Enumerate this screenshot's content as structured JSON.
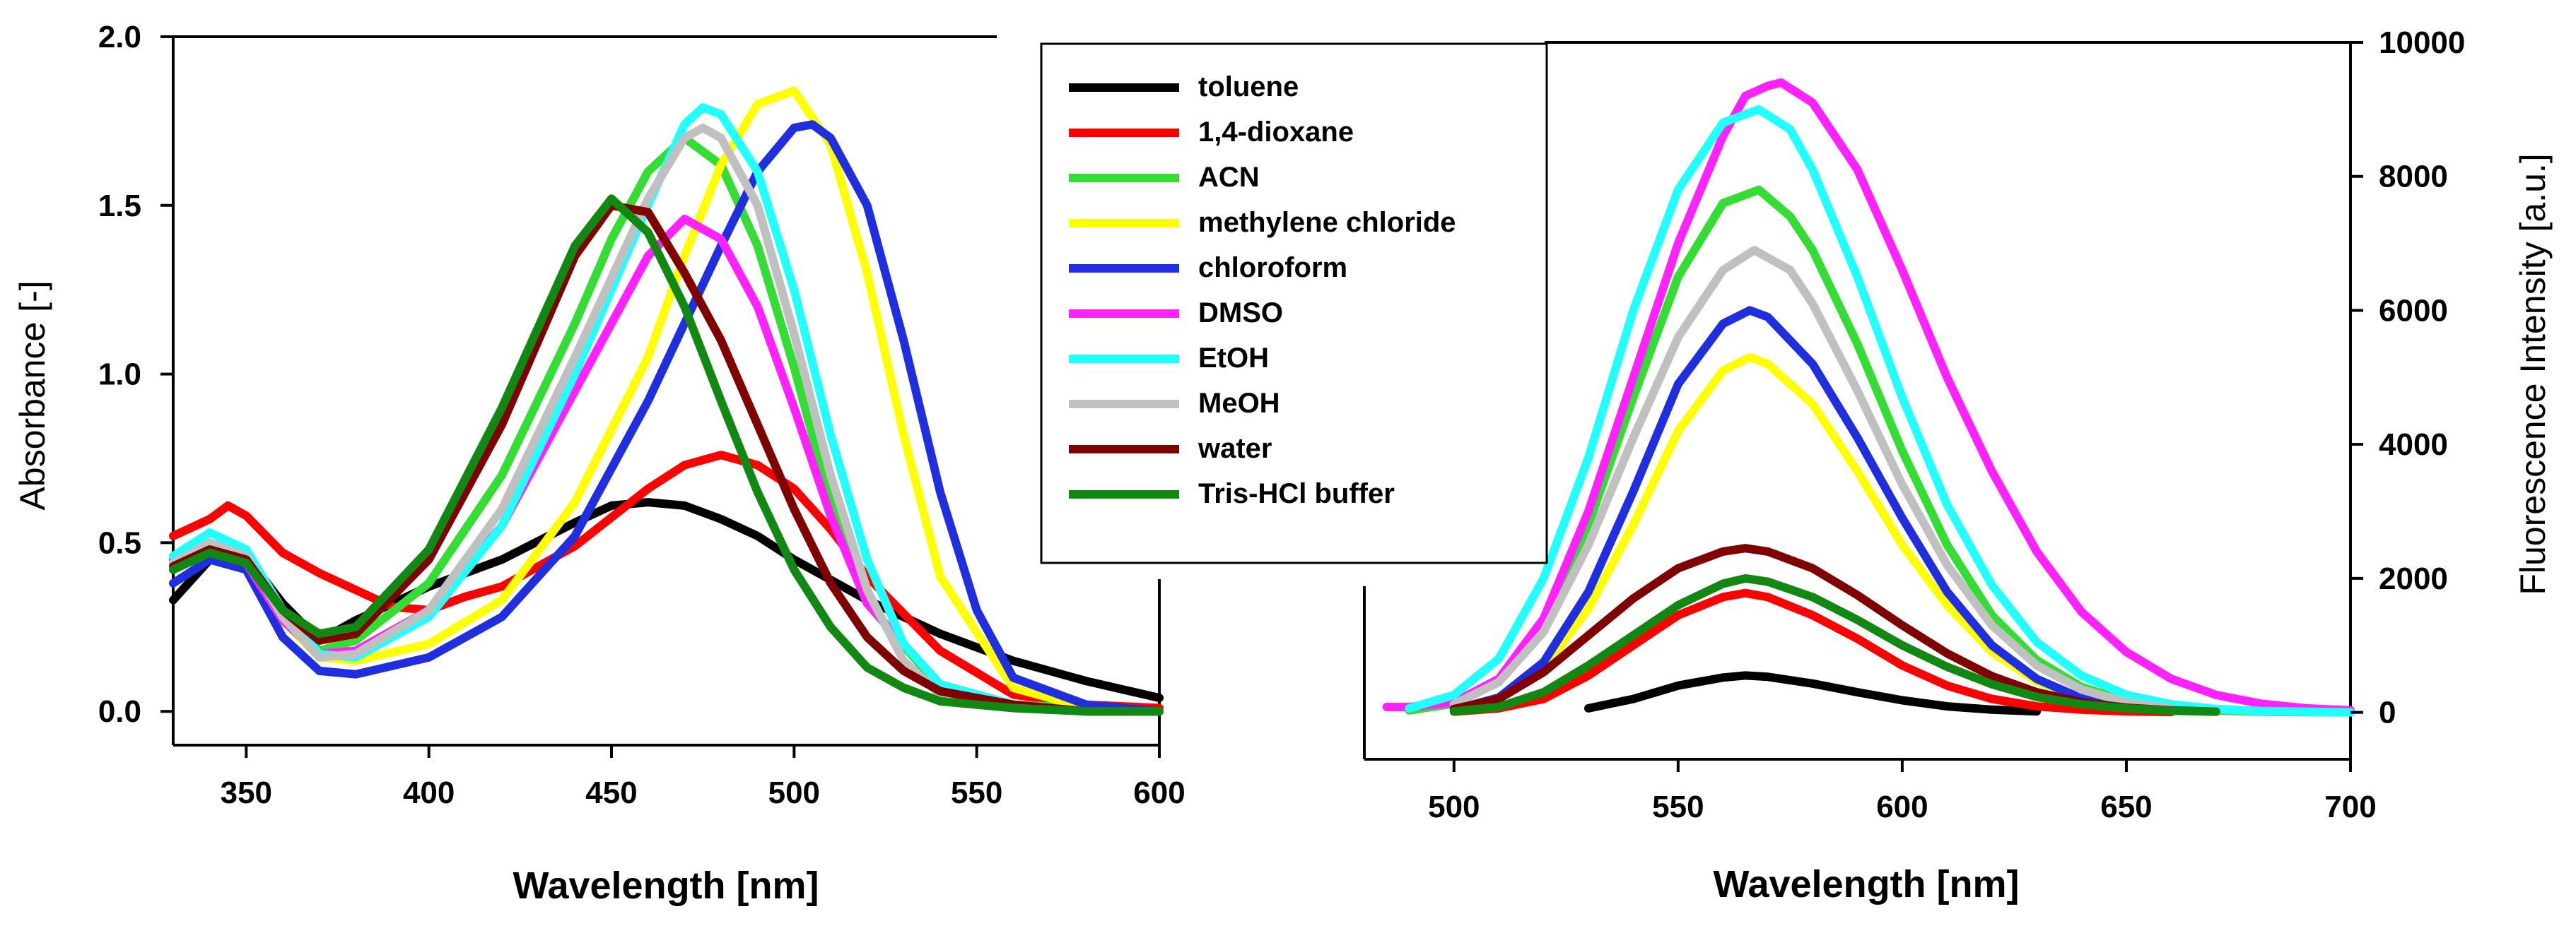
{
  "legend": {
    "entries": [
      {
        "label": "toluene",
        "color": "#000000"
      },
      {
        "label": "1,4-dioxane",
        "color": "#ff0000"
      },
      {
        "label": "ACN",
        "color": "#33dd33"
      },
      {
        "label": "methylene chloride",
        "color": "#ffff00"
      },
      {
        "label": "chloroform",
        "color": "#1f2fe0"
      },
      {
        "label": "DMSO",
        "color": "#ff22ff"
      },
      {
        "label": "EtOH",
        "color": "#22ffff"
      },
      {
        "label": "MeOH",
        "color": "#c0c0c0"
      },
      {
        "label": "water",
        "color": "#800000"
      },
      {
        "label": "Tris-HCl buffer",
        "color": "#118811"
      }
    ]
  },
  "chart_data": [
    {
      "type": "line",
      "title": "",
      "xlabel": "Wavelength [nm]",
      "ylabel": "Absorbance [-]",
      "xlim": [
        330,
        600
      ],
      "ylim": [
        -0.1,
        2.0
      ],
      "xticks": [
        "350",
        "400",
        "450",
        "500",
        "550",
        "600"
      ],
      "yticks": [
        "0.0",
        "0.5",
        "1.0",
        "1.5",
        "2.0"
      ],
      "grid": false,
      "legend_position": "top-right",
      "series": [
        {
          "name": "toluene",
          "x": [
            330,
            340,
            350,
            360,
            370,
            380,
            400,
            420,
            440,
            450,
            460,
            470,
            480,
            490,
            500,
            520,
            540,
            560,
            580,
            600
          ],
          "y": [
            0.33,
            0.45,
            0.46,
            0.32,
            0.21,
            0.27,
            0.37,
            0.45,
            0.56,
            0.61,
            0.62,
            0.61,
            0.57,
            0.52,
            0.45,
            0.33,
            0.23,
            0.15,
            0.09,
            0.04
          ]
        },
        {
          "name": "1,4-dioxane",
          "x": [
            330,
            340,
            345,
            350,
            360,
            370,
            380,
            390,
            400,
            410,
            420,
            440,
            460,
            470,
            480,
            490,
            500,
            510,
            520,
            540,
            560,
            580,
            600
          ],
          "y": [
            0.52,
            0.57,
            0.61,
            0.58,
            0.47,
            0.41,
            0.36,
            0.31,
            0.3,
            0.34,
            0.37,
            0.49,
            0.66,
            0.73,
            0.76,
            0.73,
            0.66,
            0.54,
            0.4,
            0.18,
            0.05,
            0.02,
            0.01
          ]
        },
        {
          "name": "ACN",
          "x": [
            330,
            340,
            350,
            360,
            370,
            380,
            400,
            420,
            440,
            450,
            460,
            470,
            480,
            490,
            500,
            510,
            520,
            540,
            560,
            580,
            600
          ],
          "y": [
            0.45,
            0.5,
            0.46,
            0.28,
            0.18,
            0.21,
            0.38,
            0.7,
            1.15,
            1.4,
            1.6,
            1.7,
            1.62,
            1.38,
            1.02,
            0.62,
            0.32,
            0.07,
            0.02,
            0.01,
            0.0
          ]
        },
        {
          "name": "methylene chloride",
          "x": [
            330,
            340,
            350,
            360,
            370,
            380,
            400,
            420,
            440,
            460,
            470,
            480,
            490,
            500,
            510,
            520,
            530,
            540,
            560,
            580,
            600
          ],
          "y": [
            0.42,
            0.48,
            0.44,
            0.27,
            0.16,
            0.15,
            0.2,
            0.33,
            0.62,
            1.05,
            1.35,
            1.62,
            1.8,
            1.84,
            1.68,
            1.3,
            0.82,
            0.4,
            0.07,
            0.01,
            0.0
          ]
        },
        {
          "name": "chloroform",
          "x": [
            330,
            340,
            350,
            360,
            370,
            380,
            400,
            420,
            440,
            460,
            480,
            490,
            500,
            505,
            510,
            520,
            530,
            540,
            550,
            560,
            580,
            600
          ],
          "y": [
            0.38,
            0.45,
            0.42,
            0.22,
            0.12,
            0.11,
            0.16,
            0.28,
            0.52,
            0.92,
            1.38,
            1.6,
            1.73,
            1.74,
            1.7,
            1.5,
            1.1,
            0.65,
            0.3,
            0.1,
            0.02,
            0.0
          ]
        },
        {
          "name": "DMSO",
          "x": [
            330,
            340,
            350,
            360,
            370,
            380,
            400,
            420,
            440,
            450,
            460,
            470,
            480,
            490,
            500,
            510,
            520,
            540,
            560,
            580,
            600
          ],
          "y": [
            0.45,
            0.48,
            0.44,
            0.27,
            0.17,
            0.18,
            0.3,
            0.55,
            0.95,
            1.15,
            1.35,
            1.46,
            1.4,
            1.2,
            0.9,
            0.58,
            0.32,
            0.08,
            0.02,
            0.0,
            0.0
          ]
        },
        {
          "name": "EtOH",
          "x": [
            330,
            340,
            350,
            360,
            370,
            380,
            400,
            420,
            440,
            460,
            470,
            475,
            480,
            490,
            500,
            510,
            520,
            530,
            540,
            560,
            580,
            600
          ],
          "y": [
            0.46,
            0.53,
            0.48,
            0.3,
            0.17,
            0.16,
            0.28,
            0.55,
            1.0,
            1.5,
            1.74,
            1.79,
            1.77,
            1.6,
            1.25,
            0.82,
            0.45,
            0.2,
            0.08,
            0.02,
            0.0,
            0.0
          ]
        },
        {
          "name": "MeOH",
          "x": [
            330,
            340,
            350,
            360,
            370,
            380,
            400,
            420,
            440,
            460,
            470,
            475,
            480,
            490,
            500,
            510,
            520,
            530,
            540,
            560,
            580,
            600
          ],
          "y": [
            0.44,
            0.5,
            0.46,
            0.28,
            0.16,
            0.17,
            0.3,
            0.6,
            1.05,
            1.52,
            1.7,
            1.73,
            1.7,
            1.5,
            1.12,
            0.7,
            0.36,
            0.15,
            0.05,
            0.01,
            0.0,
            0.0
          ]
        },
        {
          "name": "water",
          "x": [
            330,
            340,
            350,
            360,
            370,
            380,
            400,
            420,
            440,
            450,
            460,
            470,
            480,
            490,
            500,
            510,
            520,
            530,
            540,
            560,
            580,
            600
          ],
          "y": [
            0.43,
            0.48,
            0.45,
            0.3,
            0.21,
            0.23,
            0.45,
            0.85,
            1.35,
            1.5,
            1.48,
            1.3,
            1.1,
            0.85,
            0.6,
            0.38,
            0.22,
            0.12,
            0.06,
            0.02,
            0.0,
            0.0
          ]
        },
        {
          "name": "Tris-HCl buffer",
          "x": [
            330,
            340,
            350,
            360,
            370,
            380,
            400,
            420,
            440,
            450,
            460,
            470,
            480,
            490,
            500,
            510,
            520,
            530,
            540,
            560,
            580,
            600
          ],
          "y": [
            0.42,
            0.47,
            0.44,
            0.3,
            0.23,
            0.25,
            0.48,
            0.9,
            1.38,
            1.52,
            1.42,
            1.2,
            0.92,
            0.65,
            0.42,
            0.25,
            0.13,
            0.07,
            0.03,
            0.01,
            0.0,
            0.0
          ]
        }
      ]
    },
    {
      "type": "line",
      "title": "",
      "xlabel": "Wavelength [nm]",
      "ylabel": "Fluorescence Intensity [a.u.]",
      "xlim": [
        480,
        700
      ],
      "ylim": [
        -700,
        10000
      ],
      "xticks": [
        "500",
        "550",
        "600",
        "650",
        "700"
      ],
      "yticks": [
        "0",
        "2000",
        "4000",
        "6000",
        "8000",
        "10000"
      ],
      "grid": false,
      "series": [
        {
          "name": "toluene",
          "x": [
            530,
            540,
            550,
            560,
            565,
            570,
            580,
            590,
            600,
            610,
            620,
            630
          ],
          "y": [
            60,
            200,
            400,
            520,
            550,
            530,
            430,
            300,
            180,
            90,
            40,
            15
          ]
        },
        {
          "name": "1,4-dioxane",
          "x": [
            500,
            510,
            520,
            530,
            540,
            550,
            560,
            565,
            570,
            580,
            590,
            600,
            610,
            620,
            630,
            640,
            650,
            660
          ],
          "y": [
            10,
            60,
            200,
            550,
            1000,
            1450,
            1720,
            1780,
            1720,
            1450,
            1100,
            700,
            400,
            200,
            90,
            40,
            15,
            5
          ]
        },
        {
          "name": "ACN",
          "x": [
            490,
            500,
            510,
            520,
            530,
            540,
            550,
            560,
            568,
            575,
            580,
            590,
            600,
            610,
            620,
            630,
            640,
            650,
            660,
            670,
            680,
            690,
            700
          ],
          "y": [
            30,
            130,
            450,
            1300,
            2800,
            4700,
            6500,
            7600,
            7800,
            7400,
            6900,
            5500,
            3900,
            2500,
            1450,
            780,
            380,
            170,
            70,
            30,
            10,
            3,
            0
          ]
        },
        {
          "name": "methylene chloride",
          "x": [
            500,
            510,
            520,
            530,
            540,
            550,
            560,
            566,
            570,
            580,
            590,
            600,
            610,
            620,
            630,
            640,
            650,
            660,
            670
          ],
          "y": [
            50,
            200,
            650,
            1550,
            2800,
            4200,
            5100,
            5300,
            5200,
            4600,
            3600,
            2500,
            1600,
            900,
            460,
            210,
            90,
            35,
            10
          ]
        },
        {
          "name": "chloroform",
          "x": [
            500,
            510,
            520,
            530,
            540,
            550,
            560,
            566,
            570,
            580,
            590,
            600,
            610,
            620,
            630,
            640,
            650
          ],
          "y": [
            40,
            220,
            750,
            1800,
            3300,
            4900,
            5800,
            6000,
            5900,
            5200,
            4100,
            2900,
            1800,
            1000,
            500,
            210,
            80
          ]
        },
        {
          "name": "DMSO",
          "x": [
            485,
            490,
            500,
            510,
            520,
            530,
            540,
            550,
            560,
            565,
            570,
            573,
            580,
            590,
            600,
            610,
            620,
            630,
            640,
            650,
            660,
            670,
            680,
            690,
            700
          ],
          "y": [
            80,
            80,
            150,
            500,
            1400,
            3000,
            5000,
            7000,
            8600,
            9200,
            9350,
            9400,
            9100,
            8100,
            6600,
            5000,
            3600,
            2400,
            1500,
            900,
            500,
            260,
            130,
            60,
            30
          ]
        },
        {
          "name": "EtOH",
          "x": [
            490,
            500,
            510,
            520,
            530,
            540,
            550,
            560,
            568,
            575,
            580,
            590,
            600,
            610,
            620,
            630,
            640,
            650,
            660,
            670,
            680,
            690,
            700
          ],
          "y": [
            60,
            260,
            800,
            2000,
            3800,
            6000,
            7800,
            8800,
            9000,
            8700,
            8100,
            6500,
            4700,
            3100,
            1900,
            1050,
            550,
            260,
            120,
            50,
            20,
            8,
            0
          ]
        },
        {
          "name": "MeOH",
          "x": [
            500,
            510,
            520,
            530,
            540,
            550,
            560,
            567,
            575,
            580,
            590,
            600,
            610,
            620,
            630,
            640,
            650,
            660
          ],
          "y": [
            120,
            450,
            1200,
            2500,
            4100,
            5600,
            6600,
            6900,
            6600,
            6100,
            4800,
            3400,
            2200,
            1300,
            700,
            340,
            150,
            60
          ]
        },
        {
          "name": "water",
          "x": [
            500,
            510,
            520,
            530,
            540,
            550,
            560,
            565,
            570,
            580,
            590,
            600,
            610,
            620,
            630,
            640,
            650,
            660,
            670
          ],
          "y": [
            50,
            200,
            600,
            1150,
            1700,
            2150,
            2400,
            2450,
            2400,
            2150,
            1750,
            1300,
            880,
            540,
            300,
            150,
            70,
            30,
            10
          ]
        },
        {
          "name": "Tris-HCl buffer",
          "x": [
            500,
            510,
            520,
            530,
            540,
            550,
            560,
            565,
            570,
            580,
            590,
            600,
            610,
            620,
            630,
            640,
            650,
            660,
            670
          ],
          "y": [
            15,
            80,
            300,
            700,
            1150,
            1600,
            1920,
            2000,
            1950,
            1720,
            1380,
            1000,
            680,
            420,
            230,
            120,
            60,
            25,
            10
          ]
        }
      ]
    }
  ]
}
